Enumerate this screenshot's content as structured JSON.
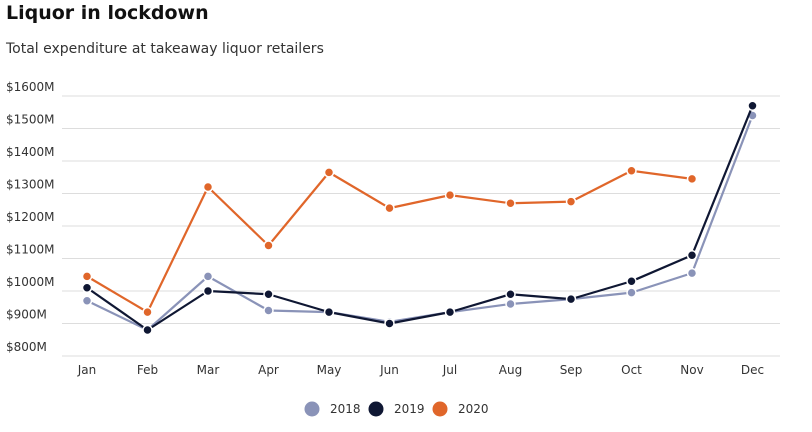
{
  "title": "Liquor in lockdown",
  "subtitle": "Total expenditure at takeaway liquor retailers",
  "chart_data": {
    "type": "line",
    "title": "Liquor in lockdown",
    "subtitle": "Total expenditure at takeaway liquor retailers",
    "categories": [
      "Jan",
      "Feb",
      "Mar",
      "Apr",
      "May",
      "Jun",
      "Jul",
      "Aug",
      "Sep",
      "Oct",
      "Nov",
      "Dec"
    ],
    "y_ticks": [
      800,
      900,
      1000,
      1100,
      1200,
      1300,
      1400,
      1500,
      1600
    ],
    "y_tick_labels": [
      "$800M",
      "$900M",
      "$1000M",
      "$1100M",
      "$1200M",
      "$1300M",
      "$1400M",
      "$1500M",
      "$1600M"
    ],
    "ylim": [
      780,
      1630
    ],
    "grid": true,
    "legend_position": "bottom",
    "series": [
      {
        "name": "2018",
        "color": "#8a93b8",
        "values": [
          970,
          880,
          1045,
          940,
          935,
          905,
          935,
          960,
          975,
          995,
          1055,
          1540
        ]
      },
      {
        "name": "2019",
        "color": "#0f1733",
        "values": [
          1010,
          880,
          1000,
          990,
          935,
          900,
          935,
          990,
          975,
          1030,
          1110,
          1570
        ]
      },
      {
        "name": "2020",
        "color": "#e0662a",
        "values": [
          1045,
          935,
          1320,
          1140,
          1365,
          1255,
          1295,
          1270,
          1275,
          1370,
          1345,
          null
        ]
      }
    ]
  }
}
